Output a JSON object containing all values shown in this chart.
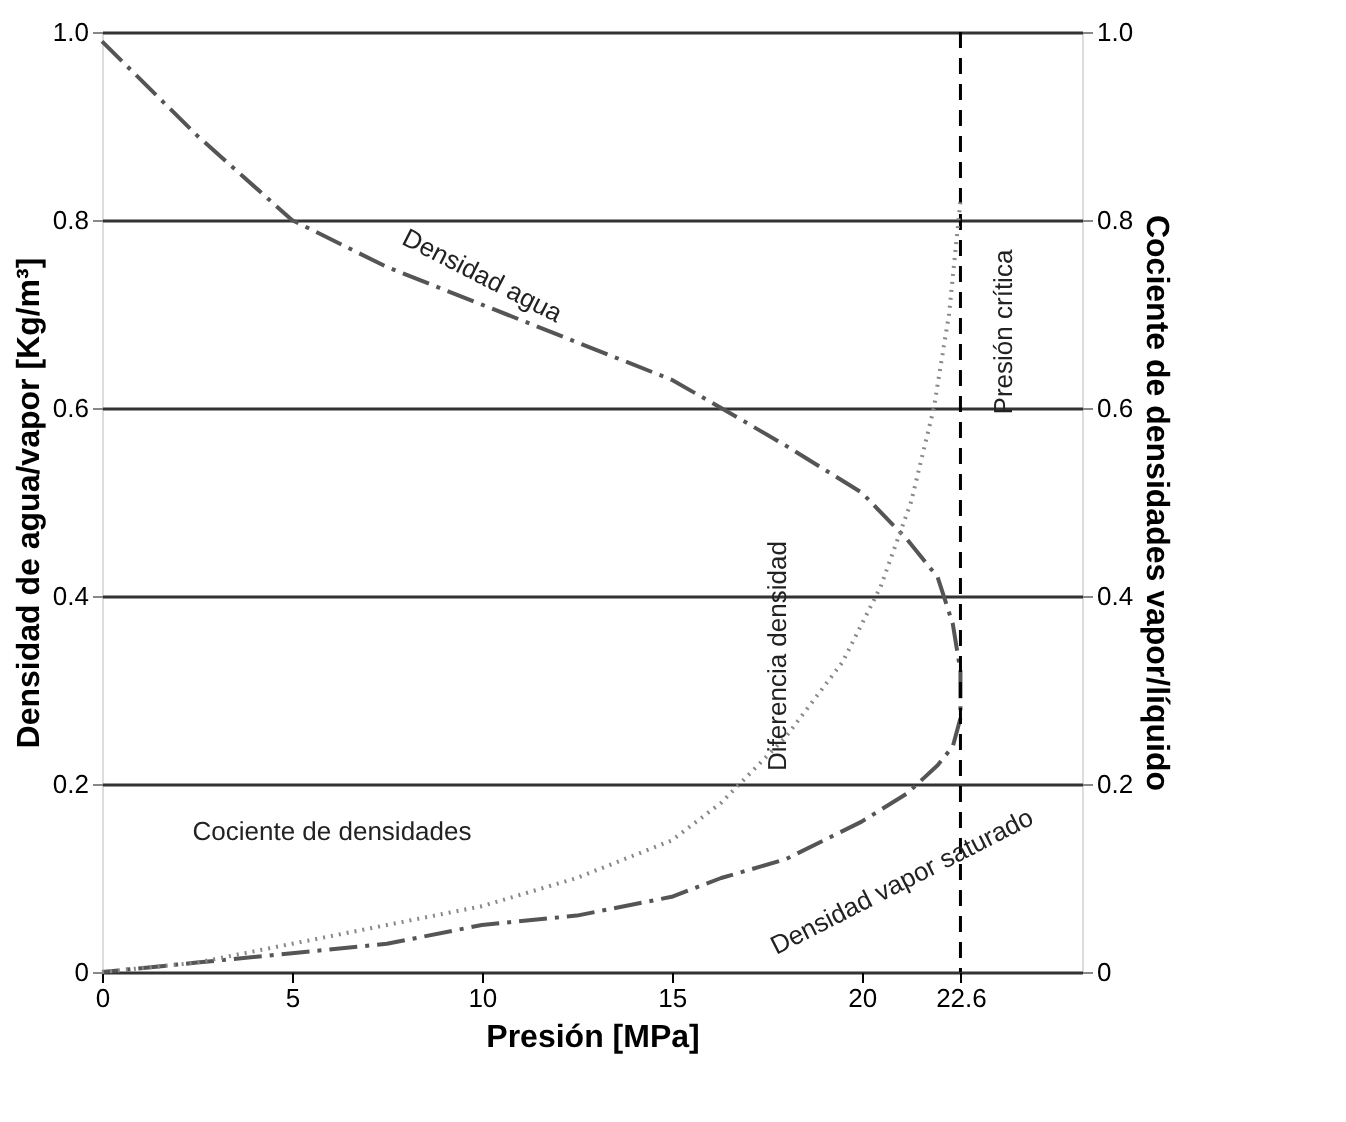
{
  "chart_data": {
    "type": "line",
    "xlabel": "Presión [MPa]",
    "ylabel": "Densidad de agua/vapor [Kg/m³]",
    "y2label": "Cociente de densidades vapor/líquido",
    "xlim": [
      0,
      25.8
    ],
    "xticks": [
      0,
      5,
      10,
      15,
      20,
      {
        "value": 22.6,
        "label": "22.6"
      }
    ],
    "ylim": [
      0,
      1
    ],
    "yticks": [
      {
        "value": 0,
        "label": "0"
      },
      0.2,
      0.4,
      0.6,
      0.8,
      {
        "value": 1,
        "label": "1.0"
      }
    ],
    "y2lim": [
      0,
      1
    ],
    "y2ticks": [
      {
        "value": 0,
        "label": "0"
      },
      0.2,
      0.4,
      0.6,
      0.8,
      {
        "value": 1,
        "label": "1.0"
      }
    ],
    "grid": "y",
    "line_style": "dashed",
    "series": [
      {
        "color": "#555555",
        "x": [
          0,
          2.5,
          5,
          7.5,
          10,
          12.5,
          15,
          16.3,
          18,
          20,
          21.2,
          22,
          22.4,
          22.6,
          22.6,
          22.4,
          22,
          21.2,
          20,
          18,
          16.3,
          15,
          12.5,
          10,
          7.5,
          5,
          2.5,
          0
        ],
        "values": [
          0.99,
          0.89,
          0.8,
          0.75,
          0.71,
          0.67,
          0.63,
          0.6,
          0.56,
          0.51,
          0.46,
          0.42,
          0.37,
          0.32,
          0.27,
          0.24,
          0.22,
          0.19,
          0.16,
          0.12,
          0.1,
          0.08,
          0.06,
          0.05,
          0.03,
          0.02,
          0.01,
          0
        ]
      },
      {
        "color": "#888888",
        "axis": "y2",
        "line_style": "dotted",
        "x": [
          0,
          2.5,
          5,
          7.5,
          10,
          12.5,
          15,
          16.3,
          18,
          19.5,
          20.5,
          21.3,
          21.9,
          22.3,
          22.6
        ],
        "values": [
          0,
          0.01,
          0.03,
          0.05,
          0.07,
          0.1,
          0.14,
          0.18,
          0.25,
          0.33,
          0.41,
          0.5,
          0.6,
          0.7,
          0.82
        ]
      }
    ],
    "ref_lines": [
      {
        "axis": "x",
        "value": 22.6,
        "label": "Presión crítica",
        "color": "#000000",
        "line_style": "dashed"
      }
    ],
    "annotations": [
      "Densidad agua",
      "Cociente de densidades",
      "Densidad vapor saturado",
      "Diferencia densidad"
    ]
  }
}
